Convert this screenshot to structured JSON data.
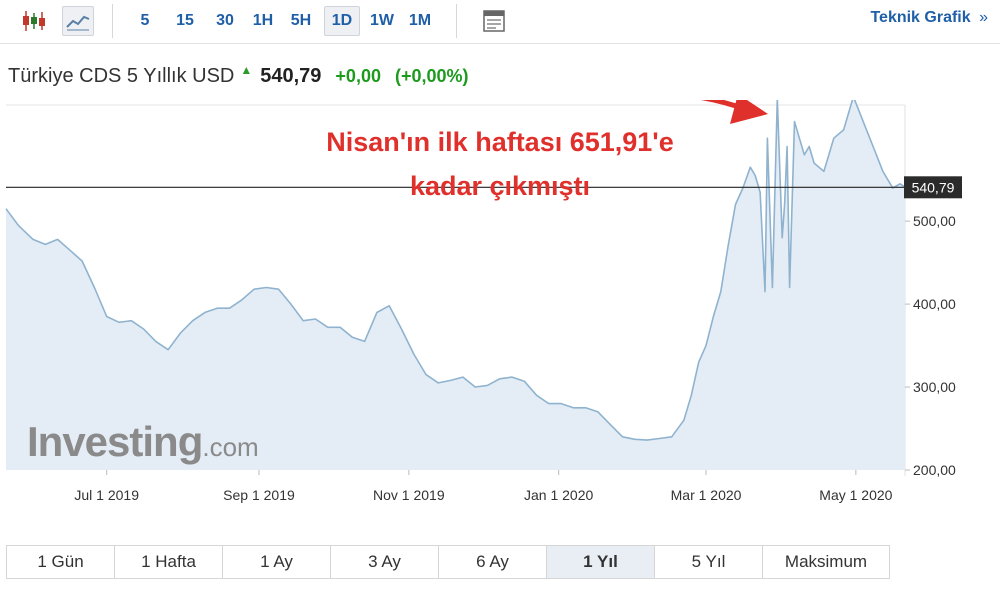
{
  "toolbar": {
    "buttons": [
      {
        "label": "5",
        "active": false
      },
      {
        "label": "15",
        "active": false
      },
      {
        "label": "30",
        "active": false
      },
      {
        "label": "1H",
        "active": false
      },
      {
        "label": "5H",
        "active": false
      },
      {
        "label": "1D",
        "active": true
      },
      {
        "label": "1W",
        "active": false
      },
      {
        "label": "1M",
        "active": false
      }
    ],
    "icons": [
      "candlestick-icon",
      "line-chart-icon",
      "table-icon"
    ],
    "teknik_label": "Teknik Grafik",
    "teknik_chevron": "»"
  },
  "header": {
    "instrument": "Türkiye CDS 5 Yıllık USD",
    "direction_icon": "up-arrow-icon",
    "price": "540,79",
    "change_abs": "+0,00",
    "change_pct": "(+0,00%)"
  },
  "annotation": {
    "line1": "Nisan'ın ilk haftası 651,91'e",
    "line2": "kadar çıkmıştı"
  },
  "watermark": {
    "main": "Investing",
    "suffix": ".com"
  },
  "range_tabs": [
    {
      "label": "1 Gün",
      "active": false
    },
    {
      "label": "1 Hafta",
      "active": false
    },
    {
      "label": "1 Ay",
      "active": false
    },
    {
      "label": "3 Ay",
      "active": false
    },
    {
      "label": "6 Ay",
      "active": false
    },
    {
      "label": "1 Yıl",
      "active": true
    },
    {
      "label": "5 Yıl",
      "active": false
    },
    {
      "label": "Maksimum",
      "active": false
    }
  ],
  "colors": {
    "line": "#8fb3cf",
    "fill": "#e4edf5",
    "reference_line": "#222222",
    "annotation": "#e0302b",
    "positive": "#1e9b1e",
    "link": "#1f5fa8"
  },
  "chart_data": {
    "type": "area",
    "title": "Türkiye CDS 5 Yıllık USD",
    "xlabel": "",
    "ylabel": "",
    "ylim": [
      200,
      640
    ],
    "xlim": [
      "2019-05-21",
      "2020-05-21"
    ],
    "x_ticks": [
      {
        "date": "2019-07-01",
        "label": "Jul 1 2019"
      },
      {
        "date": "2019-09-01",
        "label": "Sep 1 2019"
      },
      {
        "date": "2019-11-01",
        "label": "Nov 1 2019"
      },
      {
        "date": "2020-01-01",
        "label": "Jan 1 2020"
      },
      {
        "date": "2020-03-01",
        "label": "Mar 1 2020"
      },
      {
        "date": "2020-05-01",
        "label": "May 1 2020"
      }
    ],
    "y_ticks": [
      {
        "value": 200,
        "label": "200,00"
      },
      {
        "value": 300,
        "label": "300,00"
      },
      {
        "value": 400,
        "label": "400,00"
      },
      {
        "value": 500,
        "label": "500,00"
      }
    ],
    "current_value": {
      "value": 540.79,
      "label": "540,79"
    },
    "grid": false,
    "legend": "none",
    "series": [
      {
        "x": [
          "2019-05-21",
          "2019-05-26",
          "2019-06-01",
          "2019-06-06",
          "2019-06-11",
          "2019-06-16",
          "2019-06-21",
          "2019-06-26",
          "2019-07-01",
          "2019-07-06",
          "2019-07-11",
          "2019-07-16",
          "2019-07-21",
          "2019-07-26",
          "2019-07-31",
          "2019-08-05",
          "2019-08-10",
          "2019-08-15",
          "2019-08-20",
          "2019-08-25",
          "2019-08-30",
          "2019-09-04",
          "2019-09-09",
          "2019-09-14",
          "2019-09-19",
          "2019-09-24",
          "2019-09-29",
          "2019-10-04",
          "2019-10-09",
          "2019-10-14",
          "2019-10-19",
          "2019-10-24",
          "2019-10-29",
          "2019-11-03",
          "2019-11-08",
          "2019-11-13",
          "2019-11-18",
          "2019-11-23",
          "2019-11-28",
          "2019-12-03",
          "2019-12-08",
          "2019-12-13",
          "2019-12-18",
          "2019-12-23",
          "2019-12-28",
          "2020-01-02",
          "2020-01-07",
          "2020-01-12",
          "2020-01-17",
          "2020-01-22",
          "2020-01-27",
          "2020-02-01",
          "2020-02-06",
          "2020-02-11",
          "2020-02-16",
          "2020-02-21",
          "2020-02-24",
          "2020-02-27",
          "2020-03-01",
          "2020-03-04",
          "2020-03-07",
          "2020-03-10",
          "2020-03-13",
          "2020-03-16",
          "2020-03-19",
          "2020-03-21",
          "2020-03-23",
          "2020-03-25",
          "2020-03-26",
          "2020-03-28",
          "2020-03-30",
          "2020-04-01",
          "2020-04-02",
          "2020-04-03",
          "2020-04-04",
          "2020-04-06",
          "2020-04-08",
          "2020-04-10",
          "2020-04-12",
          "2020-04-14",
          "2020-04-18",
          "2020-04-22",
          "2020-04-26",
          "2020-04-30",
          "2020-05-04",
          "2020-05-08",
          "2020-05-12",
          "2020-05-16",
          "2020-05-19",
          "2020-05-21"
        ],
        "values": [
          515,
          495,
          478,
          472,
          478,
          465,
          452,
          420,
          385,
          378,
          380,
          370,
          355,
          345,
          365,
          380,
          390,
          395,
          395,
          405,
          418,
          420,
          418,
          400,
          380,
          382,
          372,
          372,
          360,
          355,
          390,
          398,
          370,
          340,
          315,
          305,
          308,
          312,
          300,
          302,
          310,
          312,
          307,
          290,
          280,
          280,
          275,
          275,
          270,
          255,
          240,
          237,
          236,
          238,
          240,
          260,
          290,
          330,
          350,
          385,
          415,
          470,
          520,
          540,
          565,
          555,
          535,
          415,
          600,
          420,
          648,
          480,
          520,
          590,
          420,
          620,
          600,
          580,
          590,
          570,
          560,
          600,
          610,
          650,
          620,
          590,
          560,
          540,
          545,
          541
        ]
      }
    ]
  }
}
